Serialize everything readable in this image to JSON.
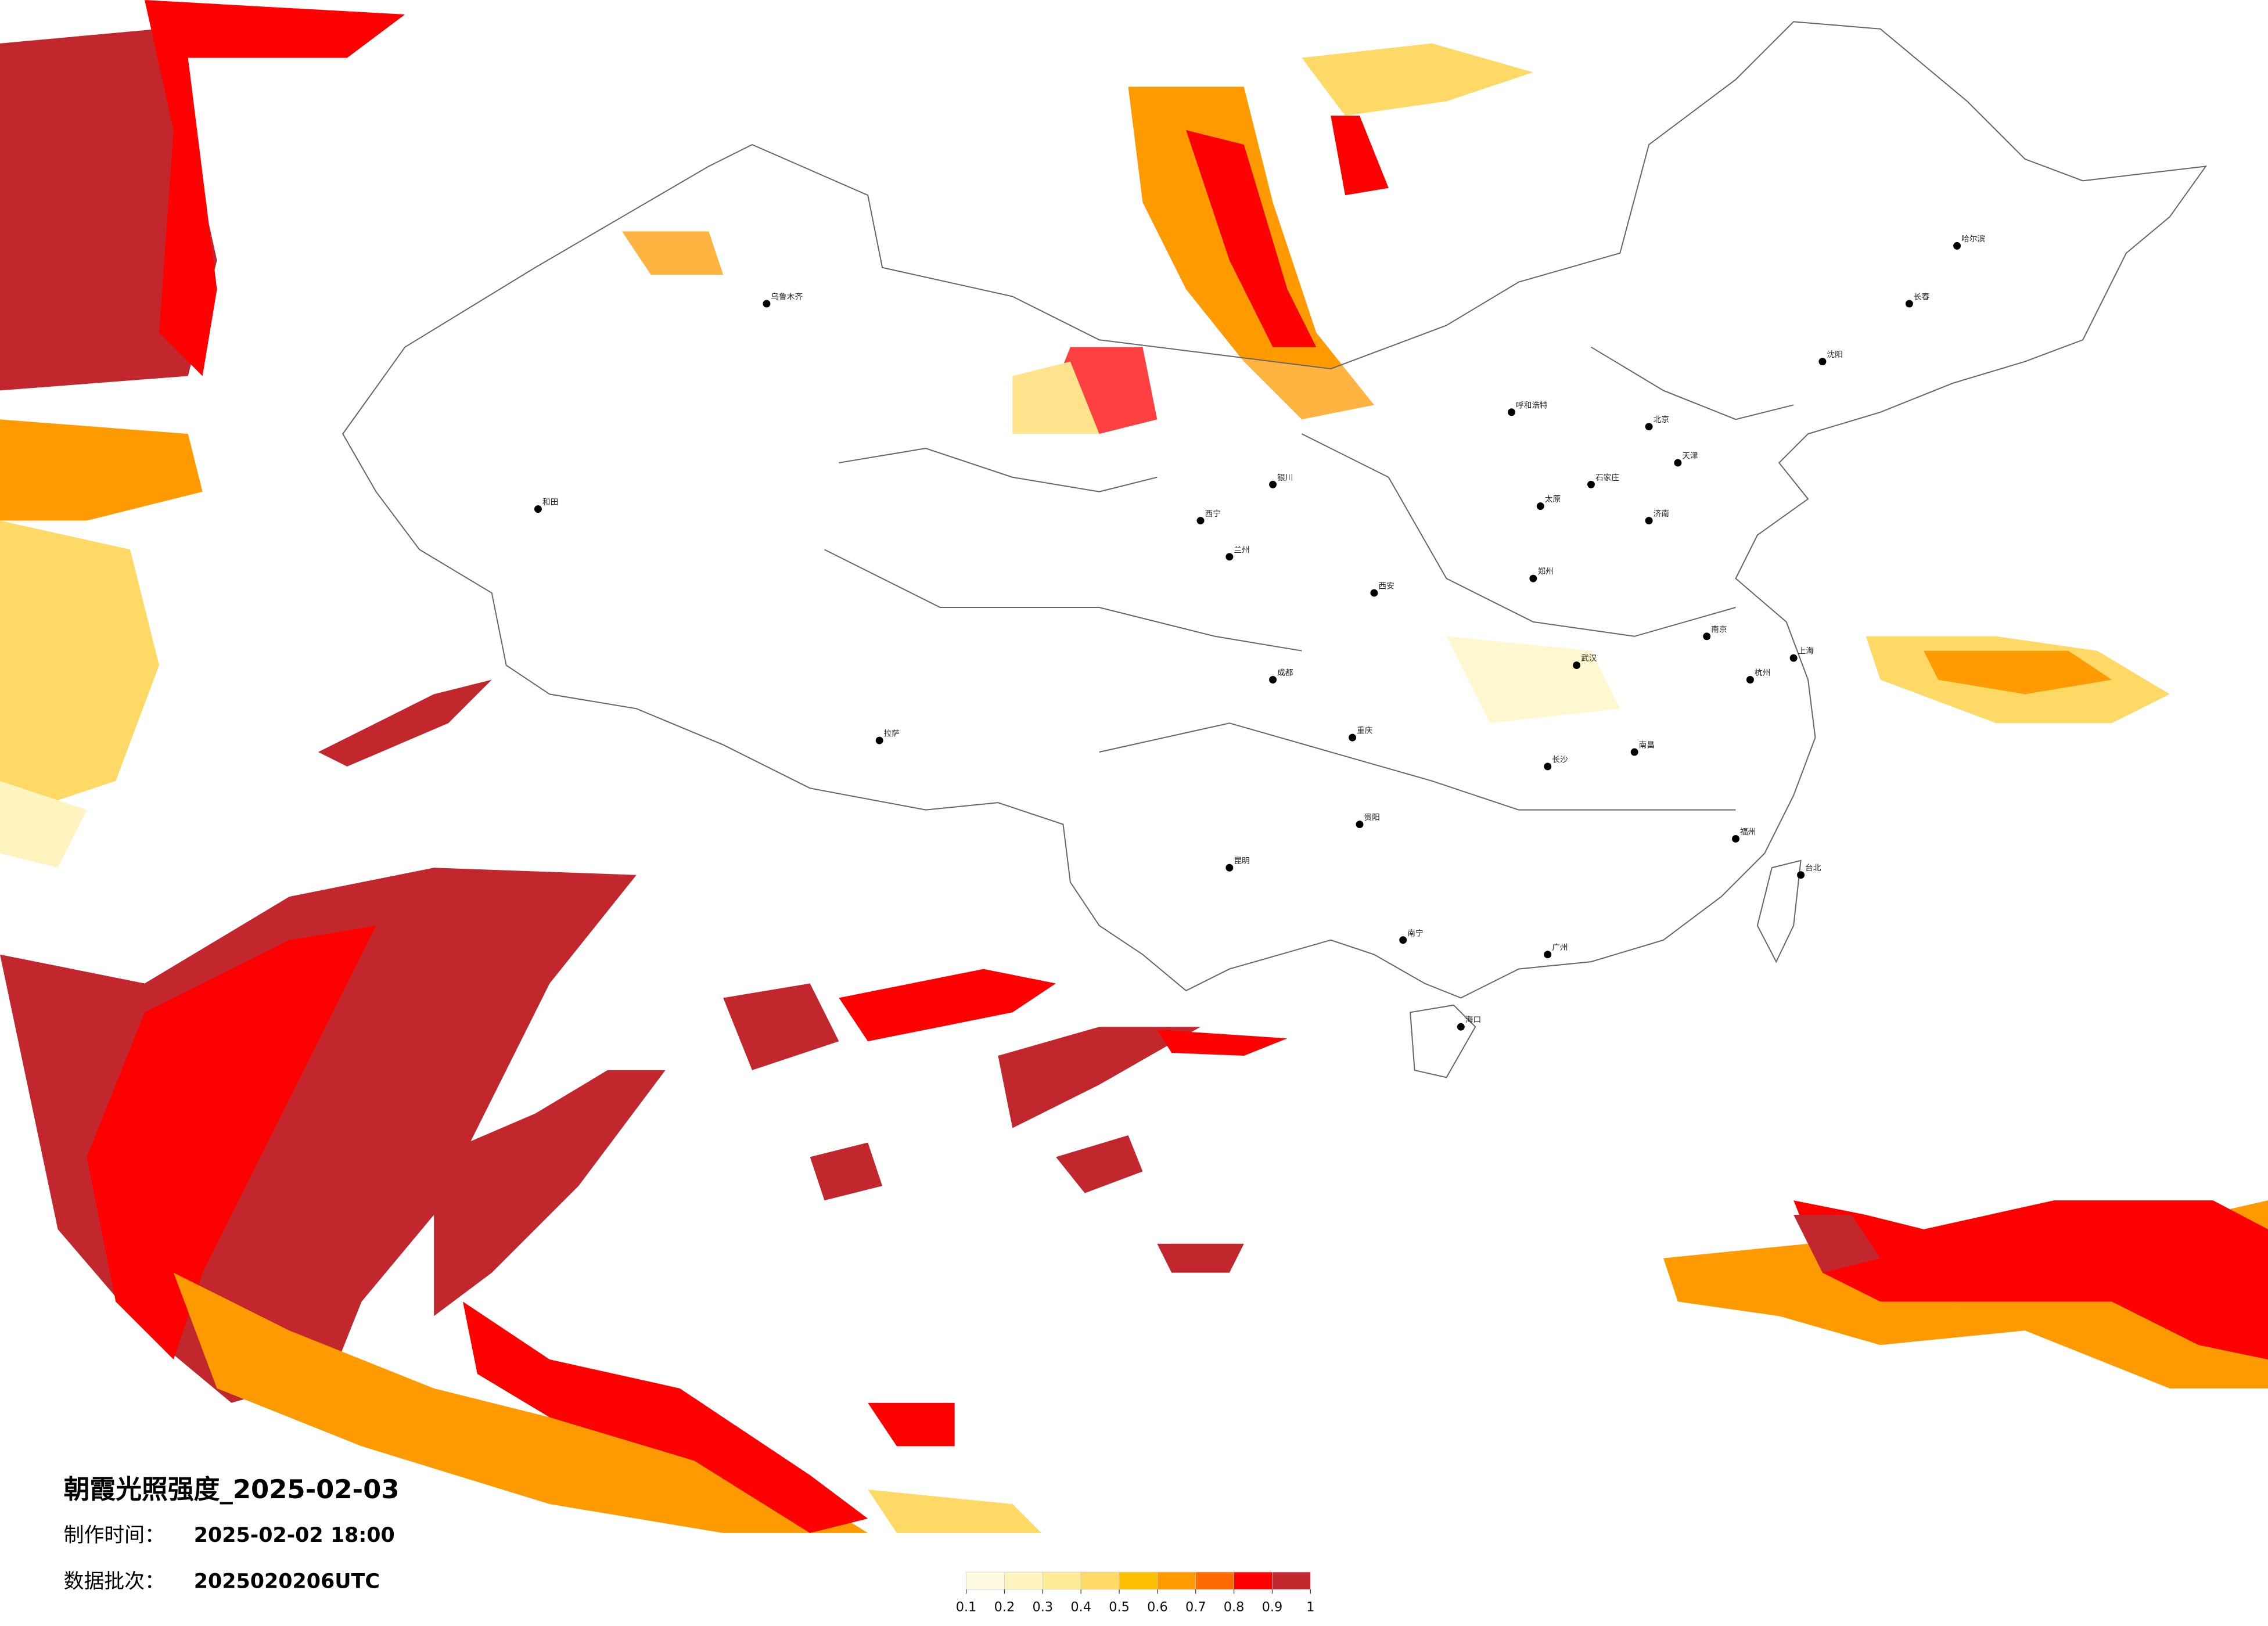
{
  "header": {
    "title": "朝霞光照强度_2025-02-03",
    "made_label": "制作时间：",
    "made_time": "2025-02-02 18:00",
    "batch_label": "数据批次：",
    "batch": "2025020206UTC"
  },
  "colorbar": {
    "ticks": [
      0.1,
      0.2,
      0.3,
      0.4,
      0.5,
      0.6,
      0.7,
      0.8,
      0.9,
      1
    ],
    "colors": [
      "#fffbe3",
      "#fff4bf",
      "#ffeb95",
      "#ffd966",
      "#ffc000",
      "#ff9a00",
      "#ff6a00",
      "#ff0000",
      "#c1272d"
    ]
  },
  "cities": [
    "乌鲁木齐",
    "和田",
    "拉萨",
    "西宁",
    "兰州",
    "银川",
    "呼和浩特",
    "北京",
    "天津",
    "石家庄",
    "太原",
    "济南",
    "西安",
    "郑州",
    "武汉",
    "成都",
    "重庆",
    "长沙",
    "南昌",
    "杭州",
    "上海",
    "南京",
    "福州",
    "广州",
    "南宁",
    "昆明",
    "贵阳",
    "海口",
    "台北",
    "哈尔滨",
    "长春",
    "沈阳"
  ]
}
